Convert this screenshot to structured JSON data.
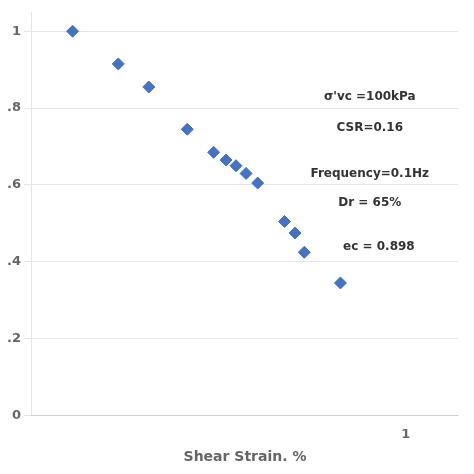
{
  "chart_data": {
    "type": "scatter",
    "x_label": "Shear Strain. %",
    "series": [
      {
        "color": "#4472C4",
        "marker": "diamond",
        "x": [
          0.012,
          0.022,
          0.033,
          0.055,
          0.078,
          0.092,
          0.105,
          0.12,
          0.14,
          0.2,
          0.23,
          0.26,
          0.42
        ],
        "values": [
          1.0,
          0.915,
          0.855,
          0.745,
          0.685,
          0.665,
          0.65,
          0.63,
          0.605,
          0.505,
          0.475,
          0.425,
          0.345
        ]
      }
    ],
    "log": "x",
    "xlim": [
      0.007,
      2.0
    ],
    "xticks": [
      1
    ],
    "ylim": [
      0,
      1.05
    ],
    "yticks": [
      0,
      {
        "value": 0.2,
        "label": ".2"
      },
      {
        "value": 0.4,
        "label": ".4"
      },
      {
        "value": 0.6,
        "label": ".6"
      },
      {
        "value": 0.8,
        "label": ".8"
      },
      1
    ],
    "grid": "y",
    "annotations": [
      {
        "text": "σ'vc =100kPa",
        "x": 0.62,
        "y": 0.82
      },
      {
        "text": "CSR=0.16",
        "x": 0.62,
        "y": 0.74
      },
      {
        "text": "Frequency=0.1Hz",
        "x": 0.62,
        "y": 0.62
      },
      {
        "text": "Dr = 65%",
        "x": 0.62,
        "y": 0.545
      },
      {
        "text": "ec = 0.898",
        "x": 0.7,
        "y": 0.43
      }
    ]
  }
}
